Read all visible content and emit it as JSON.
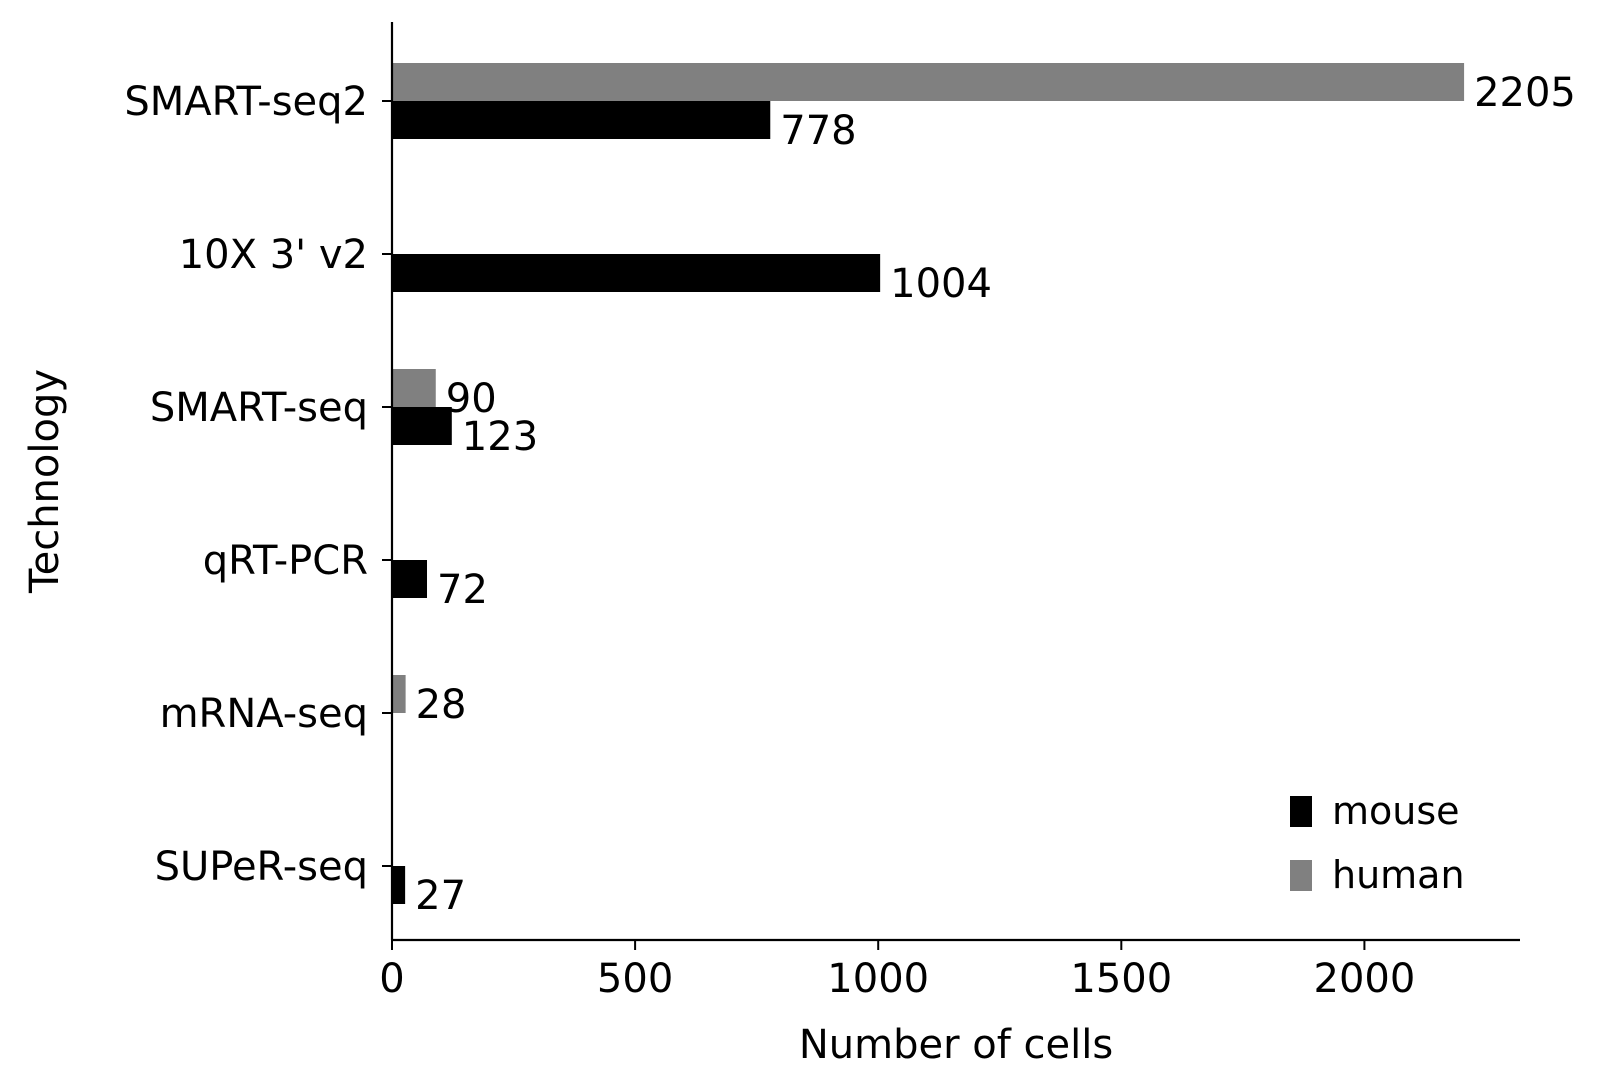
{
  "chart_data": {
    "type": "bar",
    "orientation": "horizontal",
    "title": "",
    "xlabel": "Number of cells",
    "ylabel": "Technology",
    "categories": [
      "SMART-seq2",
      "10X 3' v2",
      "SMART-seq",
      "qRT-PCR",
      "mRNA-seq",
      "SUPeR-seq"
    ],
    "series": [
      {
        "name": "mouse",
        "color": "#000000",
        "values": [
          778,
          1004,
          123,
          72,
          null,
          27
        ]
      },
      {
        "name": "human",
        "color": "#808080",
        "values": [
          2205,
          null,
          90,
          null,
          28,
          null
        ]
      }
    ],
    "xlim": [
      0,
      2320
    ],
    "xticks": [
      0,
      500,
      1000,
      1500,
      2000
    ],
    "grid": false,
    "legend_position": "lower-right",
    "data_labels": true
  }
}
